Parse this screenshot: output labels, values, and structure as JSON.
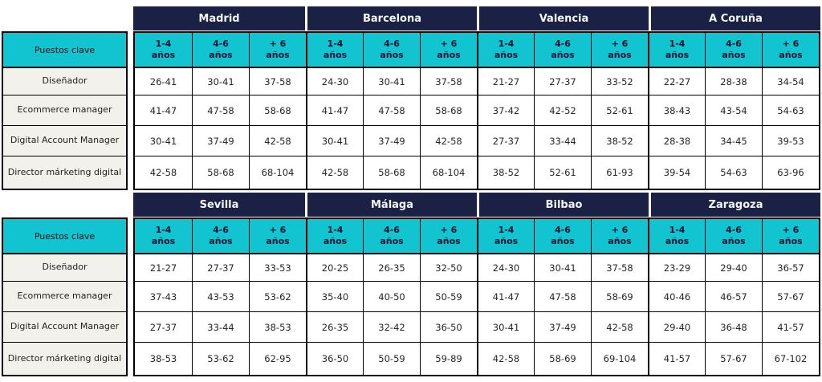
{
  "colors": {
    "navy": "#1B2144",
    "cyan": "#12C3D0",
    "label_bg": "#F2F1EB",
    "border": "#000000"
  },
  "chart_data": {
    "type": "table",
    "header_label": "Puestos clave",
    "experience_levels": [
      {
        "range": "1-4",
        "unit": "años"
      },
      {
        "range": "4-6",
        "unit": "años"
      },
      {
        "range": "+ 6",
        "unit": "años"
      }
    ],
    "sections": [
      {
        "cities": [
          "Madrid",
          "Barcelona",
          "Valencia",
          "A Coruña"
        ],
        "rows": [
          {
            "label": "Diseñador",
            "values": [
              "26-41",
              "30-41",
              "37-58",
              "24-30",
              "30-41",
              "37-58",
              "21-27",
              "27-37",
              "33-52",
              "22-27",
              "28-38",
              "34-54"
            ]
          },
          {
            "label": "Ecommerce manager",
            "values": [
              "41-47",
              "47-58",
              "58-68",
              "41-47",
              "47-58",
              "58-68",
              "37-42",
              "42-52",
              "52-61",
              "38-43",
              "43-54",
              "54-63"
            ]
          },
          {
            "label": "Digital Account Manager",
            "values": [
              "30-41",
              "37-49",
              "42-58",
              "30-41",
              "37-49",
              "42-58",
              "27-37",
              "33-44",
              "38-52",
              "28-38",
              "34-45",
              "39-53"
            ]
          },
          {
            "label": "Director márketing digital",
            "values": [
              "42-58",
              "58-68",
              "68-104",
              "42-58",
              "58-68",
              "68-104",
              "38-52",
              "52-61",
              "61-93",
              "39-54",
              "54-63",
              "63-96"
            ]
          }
        ]
      },
      {
        "cities": [
          "Sevilla",
          "Málaga",
          "Bilbao",
          "Zaragoza"
        ],
        "rows": [
          {
            "label": "Diseñador",
            "values": [
              "21-27",
              "27-37",
              "33-53",
              "20-25",
              "26-35",
              "32-50",
              "24-30",
              "30-41",
              "37-58",
              "23-29",
              "29-40",
              "36-57"
            ]
          },
          {
            "label": "Ecommerce manager",
            "values": [
              "37-43",
              "43-53",
              "53-62",
              "35-40",
              "40-50",
              "50-59",
              "41-47",
              "47-58",
              "58-69",
              "40-46",
              "46-57",
              "57-67"
            ]
          },
          {
            "label": "Digital Account Manager",
            "values": [
              "27-37",
              "33-44",
              "38-53",
              "26-35",
              "32-42",
              "36-50",
              "30-41",
              "37-49",
              "42-58",
              "29-40",
              "36-48",
              "41-57"
            ]
          },
          {
            "label": "Director márketing digital",
            "values": [
              "38-53",
              "53-62",
              "62-95",
              "36-50",
              "50-59",
              "59-89",
              "42-58",
              "58-69",
              "69-104",
              "41-57",
              "57-67",
              "67-102"
            ]
          }
        ]
      }
    ]
  }
}
